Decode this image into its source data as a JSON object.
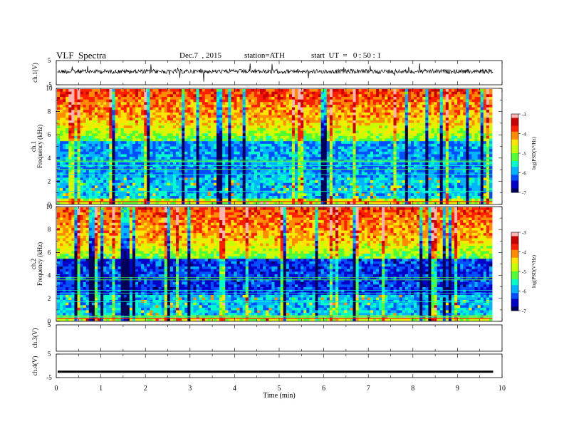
{
  "header": {
    "title": "VLF  Spectra",
    "date": "Dec.7  , 2015",
    "station": "station=ATH",
    "start": "start  UT  =   0 : 50 : 1"
  },
  "colors": {
    "colormap": [
      "#00005a",
      "#0000c8",
      "#0050ff",
      "#00b4ff",
      "#00ffc8",
      "#50ff32",
      "#c8ff00",
      "#ffe600",
      "#ff8c00",
      "#ff1e00",
      "#c80000",
      "#ffb4b4"
    ]
  },
  "chart_data": [
    {
      "type": "line",
      "ylabel": "ch.1(V)",
      "ylim": [
        -5,
        5
      ],
      "yticks": [
        "5",
        "-5"
      ],
      "xlim": [
        0,
        10
      ],
      "trace": "noisy waveform around 0 V with spikes",
      "series": [
        {
          "x": [
            0,
            9.8
          ],
          "values": [
            0,
            0
          ]
        }
      ]
    },
    {
      "type": "heatmap",
      "ylabel_outer": "ch.1",
      "ylabel": "Frequency  (kHz)",
      "ylim": [
        0,
        10
      ],
      "yticks": [
        "0",
        "2",
        "4",
        "6",
        "8",
        "10"
      ],
      "xlim": [
        0,
        10
      ],
      "colorbar": {
        "label": "log(PSD(V²/Hz)",
        "range": [
          -7,
          -3
        ],
        "ticks": [
          "-3",
          "-4",
          "-5",
          "-6",
          "-7"
        ]
      }
    },
    {
      "type": "heatmap",
      "ylabel_outer": "ch.2",
      "ylabel": "Frequency  (kHz)",
      "ylim": [
        0,
        10
      ],
      "yticks": [
        "0",
        "2",
        "4",
        "6",
        "8",
        "10"
      ],
      "xlim": [
        0,
        10
      ],
      "colorbar": {
        "label": "log(PSD(V²/Hz)",
        "range": [
          -7,
          -3
        ],
        "ticks": [
          "-3",
          "-4",
          "-5",
          "-6",
          "-7"
        ]
      }
    },
    {
      "type": "line",
      "ylabel": "ch.3(V)",
      "ylim": [
        -5,
        5
      ],
      "yticks": [
        "5"
      ],
      "xlim": [
        0,
        10
      ],
      "series": []
    },
    {
      "type": "line",
      "ylabel": "ch.4(V)",
      "ylim": [
        -5,
        5
      ],
      "yticks": [
        "5",
        "-5"
      ],
      "xlim": [
        0,
        10
      ],
      "series": [
        {
          "x": [
            0,
            9.8
          ],
          "values": [
            -2.5,
            -2.5
          ]
        }
      ]
    }
  ],
  "xaxis": {
    "label": "Time  (min)",
    "ticks": [
      "0",
      "1",
      "2",
      "3",
      "4",
      "5",
      "6",
      "7",
      "8",
      "9",
      "10"
    ]
  }
}
